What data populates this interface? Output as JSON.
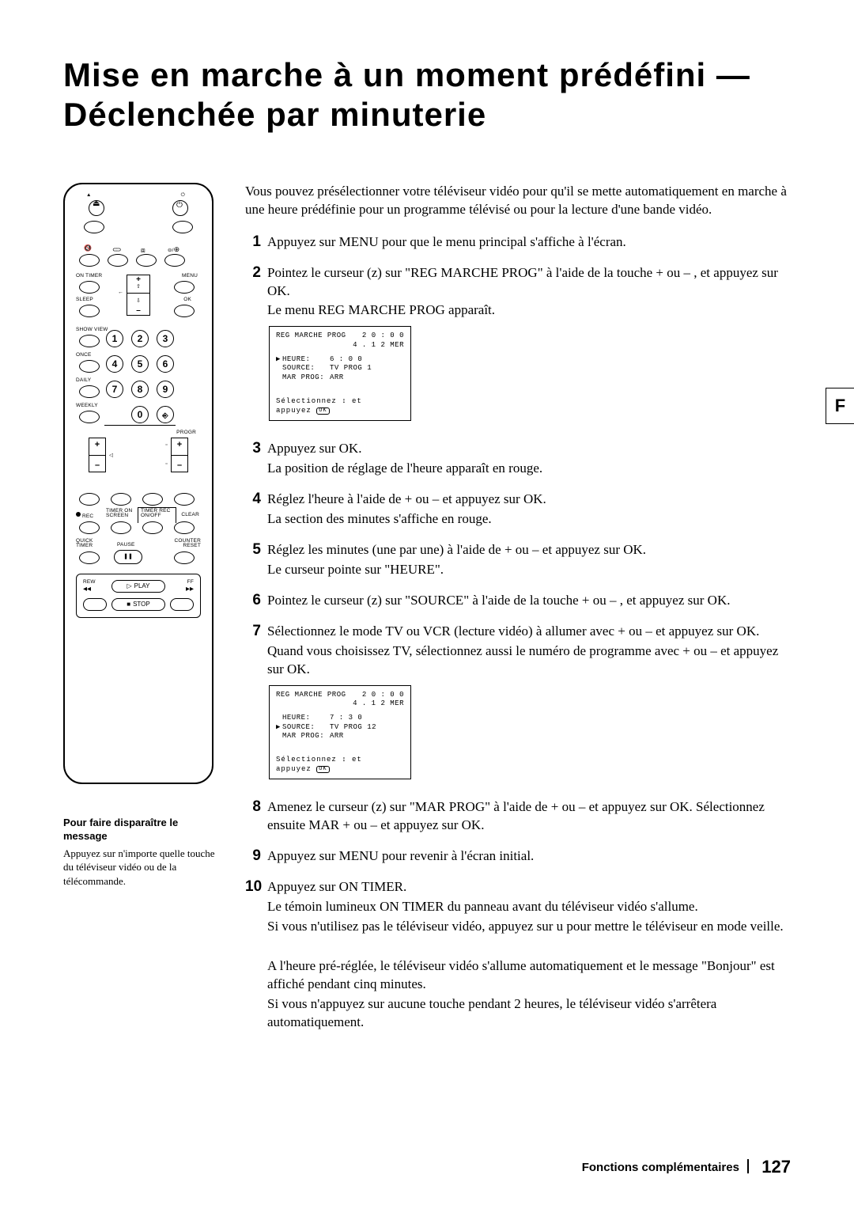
{
  "title": "Mise en marche à un moment prédéfini — Déclenchée par minuterie",
  "side_tab": "F",
  "intro": "Vous pouvez présélectionner votre téléviseur vidéo pour qu'il se mette automatiquement en marche à une heure prédéfinie pour un programme télévisé ou pour la lecture d'une bande vidéo.",
  "steps": [
    {
      "n": "1",
      "lines": [
        "Appuyez sur MENU pour que le menu principal s'affiche à l'écran."
      ]
    },
    {
      "n": "2",
      "lines": [
        "Pointez le curseur (z) sur \"REG MARCHE PROG\" à l'aide de la touche +   ou –   , et appuyez sur OK.",
        "Le menu REG MARCHE PROG apparaît."
      ],
      "osd": {
        "title": "REG MARCHE PROG",
        "clock": "2 0 : 0 0",
        "date": "4 . 1 2 MER",
        "rows": [
          {
            "ptr": "▶",
            "label": "HEURE:",
            "val": "6 : 0 0"
          },
          {
            "ptr": "",
            "label": "SOURCE:",
            "val": "TV   PROG 1"
          },
          {
            "ptr": "",
            "label": "MAR PROG:",
            "val": "ARR"
          }
        ],
        "footer1": "Sélectionnez  ↕  et",
        "footer2": "appuyez"
      }
    },
    {
      "n": "3",
      "lines": [
        "Appuyez sur OK.",
        "La position de réglage de l'heure apparaît en rouge."
      ]
    },
    {
      "n": "4",
      "lines": [
        "Réglez l'heure à l'aide de +   ou –   et appuyez sur OK.",
        "La section des minutes s'affiche en rouge."
      ]
    },
    {
      "n": "5",
      "lines": [
        "Réglez les minutes (une par une) à l'aide de +   ou –   et appuyez sur OK.",
        "Le curseur pointe sur \"HEURE\"."
      ]
    },
    {
      "n": "6",
      "lines": [
        "Pointez le curseur (z) sur \"SOURCE\" à l'aide de la touche +   ou –   , et appuyez sur OK."
      ]
    },
    {
      "n": "7",
      "lines": [
        "Sélectionnez le mode TV ou VCR (lecture vidéo) à allumer avec +   ou –   et appuyez sur OK.",
        "Quand vous choisissez TV, sélectionnez aussi le numéro de programme avec +   ou –   et appuyez sur OK."
      ],
      "osd": {
        "title": "REG MARCHE PROG",
        "clock": "2 0 : 0 0",
        "date": "4 . 1 2 MER",
        "rows": [
          {
            "ptr": "",
            "label": "HEURE:",
            "val": "7 : 3 0"
          },
          {
            "ptr": "▶",
            "label": "SOURCE:",
            "val": "TV   PROG 12"
          },
          {
            "ptr": "",
            "label": "MAR PROG:",
            "val": "ARR"
          }
        ],
        "footer1": "Sélectionnez  ↕  et",
        "footer2": "appuyez"
      }
    },
    {
      "n": "8",
      "lines": [
        "Amenez le curseur (z) sur \"MAR PROG\" à l'aide de +   ou –   et appuyez sur OK. Sélectionnez ensuite MAR +   ou –   et appuyez sur OK."
      ]
    },
    {
      "n": "9",
      "lines": [
        "Appuyez sur MENU pour revenir à l'écran initial."
      ]
    },
    {
      "n": "10",
      "lines": [
        "Appuyez sur ON TIMER.",
        "Le témoin lumineux ON TIMER du panneau avant du téléviseur vidéo s'allume.",
        "Si vous n'utilisez pas le téléviseur vidéo, appuyez sur u pour mettre le téléviseur en mode veille.",
        "",
        "A l'heure pré-réglée, le téléviseur vidéo s'allume automatiquement et le message \"Bonjour\" est affiché pendant cinq minutes.",
        "Si vous n'appuyez sur aucune touche pendant 2 heures, le téléviseur vidéo s'arrêtera automatiquement."
      ]
    }
  ],
  "note": {
    "title": "Pour faire disparaître le message",
    "body": "Appuyez sur n'importe quelle touche du téléviseur vidéo ou de la télécommande."
  },
  "footer": {
    "section": "Fonctions complémentaires",
    "page": "127"
  },
  "remote": {
    "labels": {
      "on_timer": "ON TIMER",
      "menu": "MENU",
      "sleep": "SLEEP",
      "ok": "OK",
      "showview": "SHOW VIEW",
      "once": "ONCE",
      "daily": "DAILY",
      "weekly": "WEEKLY",
      "progr": "PROGR",
      "rec": "REC",
      "timer_on_screen": "TIMER ON\nSCREEN",
      "timer_rec_onoff": "TIMER REC\nON/OFF",
      "clear": "CLEAR",
      "quick_timer": "QUICK\nTIMER",
      "pause": "PAUSE",
      "counter_reset": "COUNTER\nRESET",
      "rew": "REW",
      "play": "PLAY",
      "ff": "FF",
      "stop": "STOP"
    },
    "nums": [
      "1",
      "2",
      "3",
      "4",
      "5",
      "6",
      "7",
      "8",
      "9",
      "0"
    ]
  }
}
